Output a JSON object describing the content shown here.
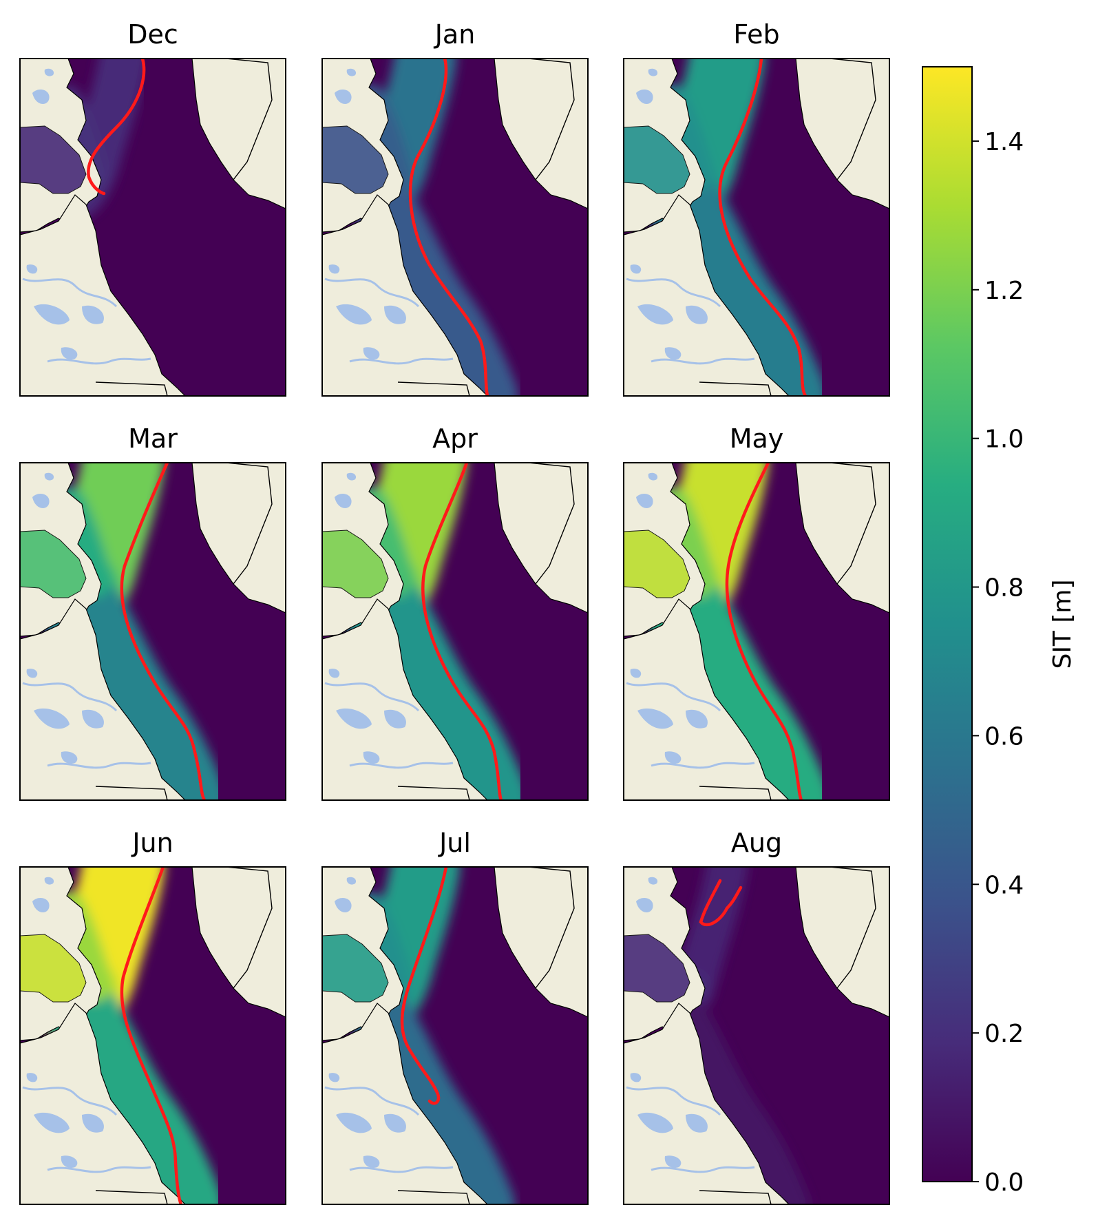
{
  "panels": [
    {
      "title": "Dec"
    },
    {
      "title": "Jan"
    },
    {
      "title": "Feb"
    },
    {
      "title": "Mar"
    },
    {
      "title": "Apr"
    },
    {
      "title": "May"
    },
    {
      "title": "Jun"
    },
    {
      "title": "Jul"
    },
    {
      "title": "Aug"
    }
  ],
  "colorbar": {
    "label": "SIT [m]",
    "min": 0.0,
    "max": 1.5,
    "ticks": [
      "0.0",
      "0.2",
      "0.4",
      "0.6",
      "0.8",
      "1.0",
      "1.2",
      "1.4"
    ],
    "colormap": [
      "#440154",
      "#472c7a",
      "#3b528b",
      "#2c728e",
      "#21908d",
      "#27ad81",
      "#5cc863",
      "#aadc32",
      "#fde725"
    ]
  },
  "colors": {
    "land": "#efeddc",
    "ocean_open": "#440154",
    "lakes": "#a6c1e8",
    "ice_edge": "#ff1a1a",
    "coastline": "#000000"
  }
}
